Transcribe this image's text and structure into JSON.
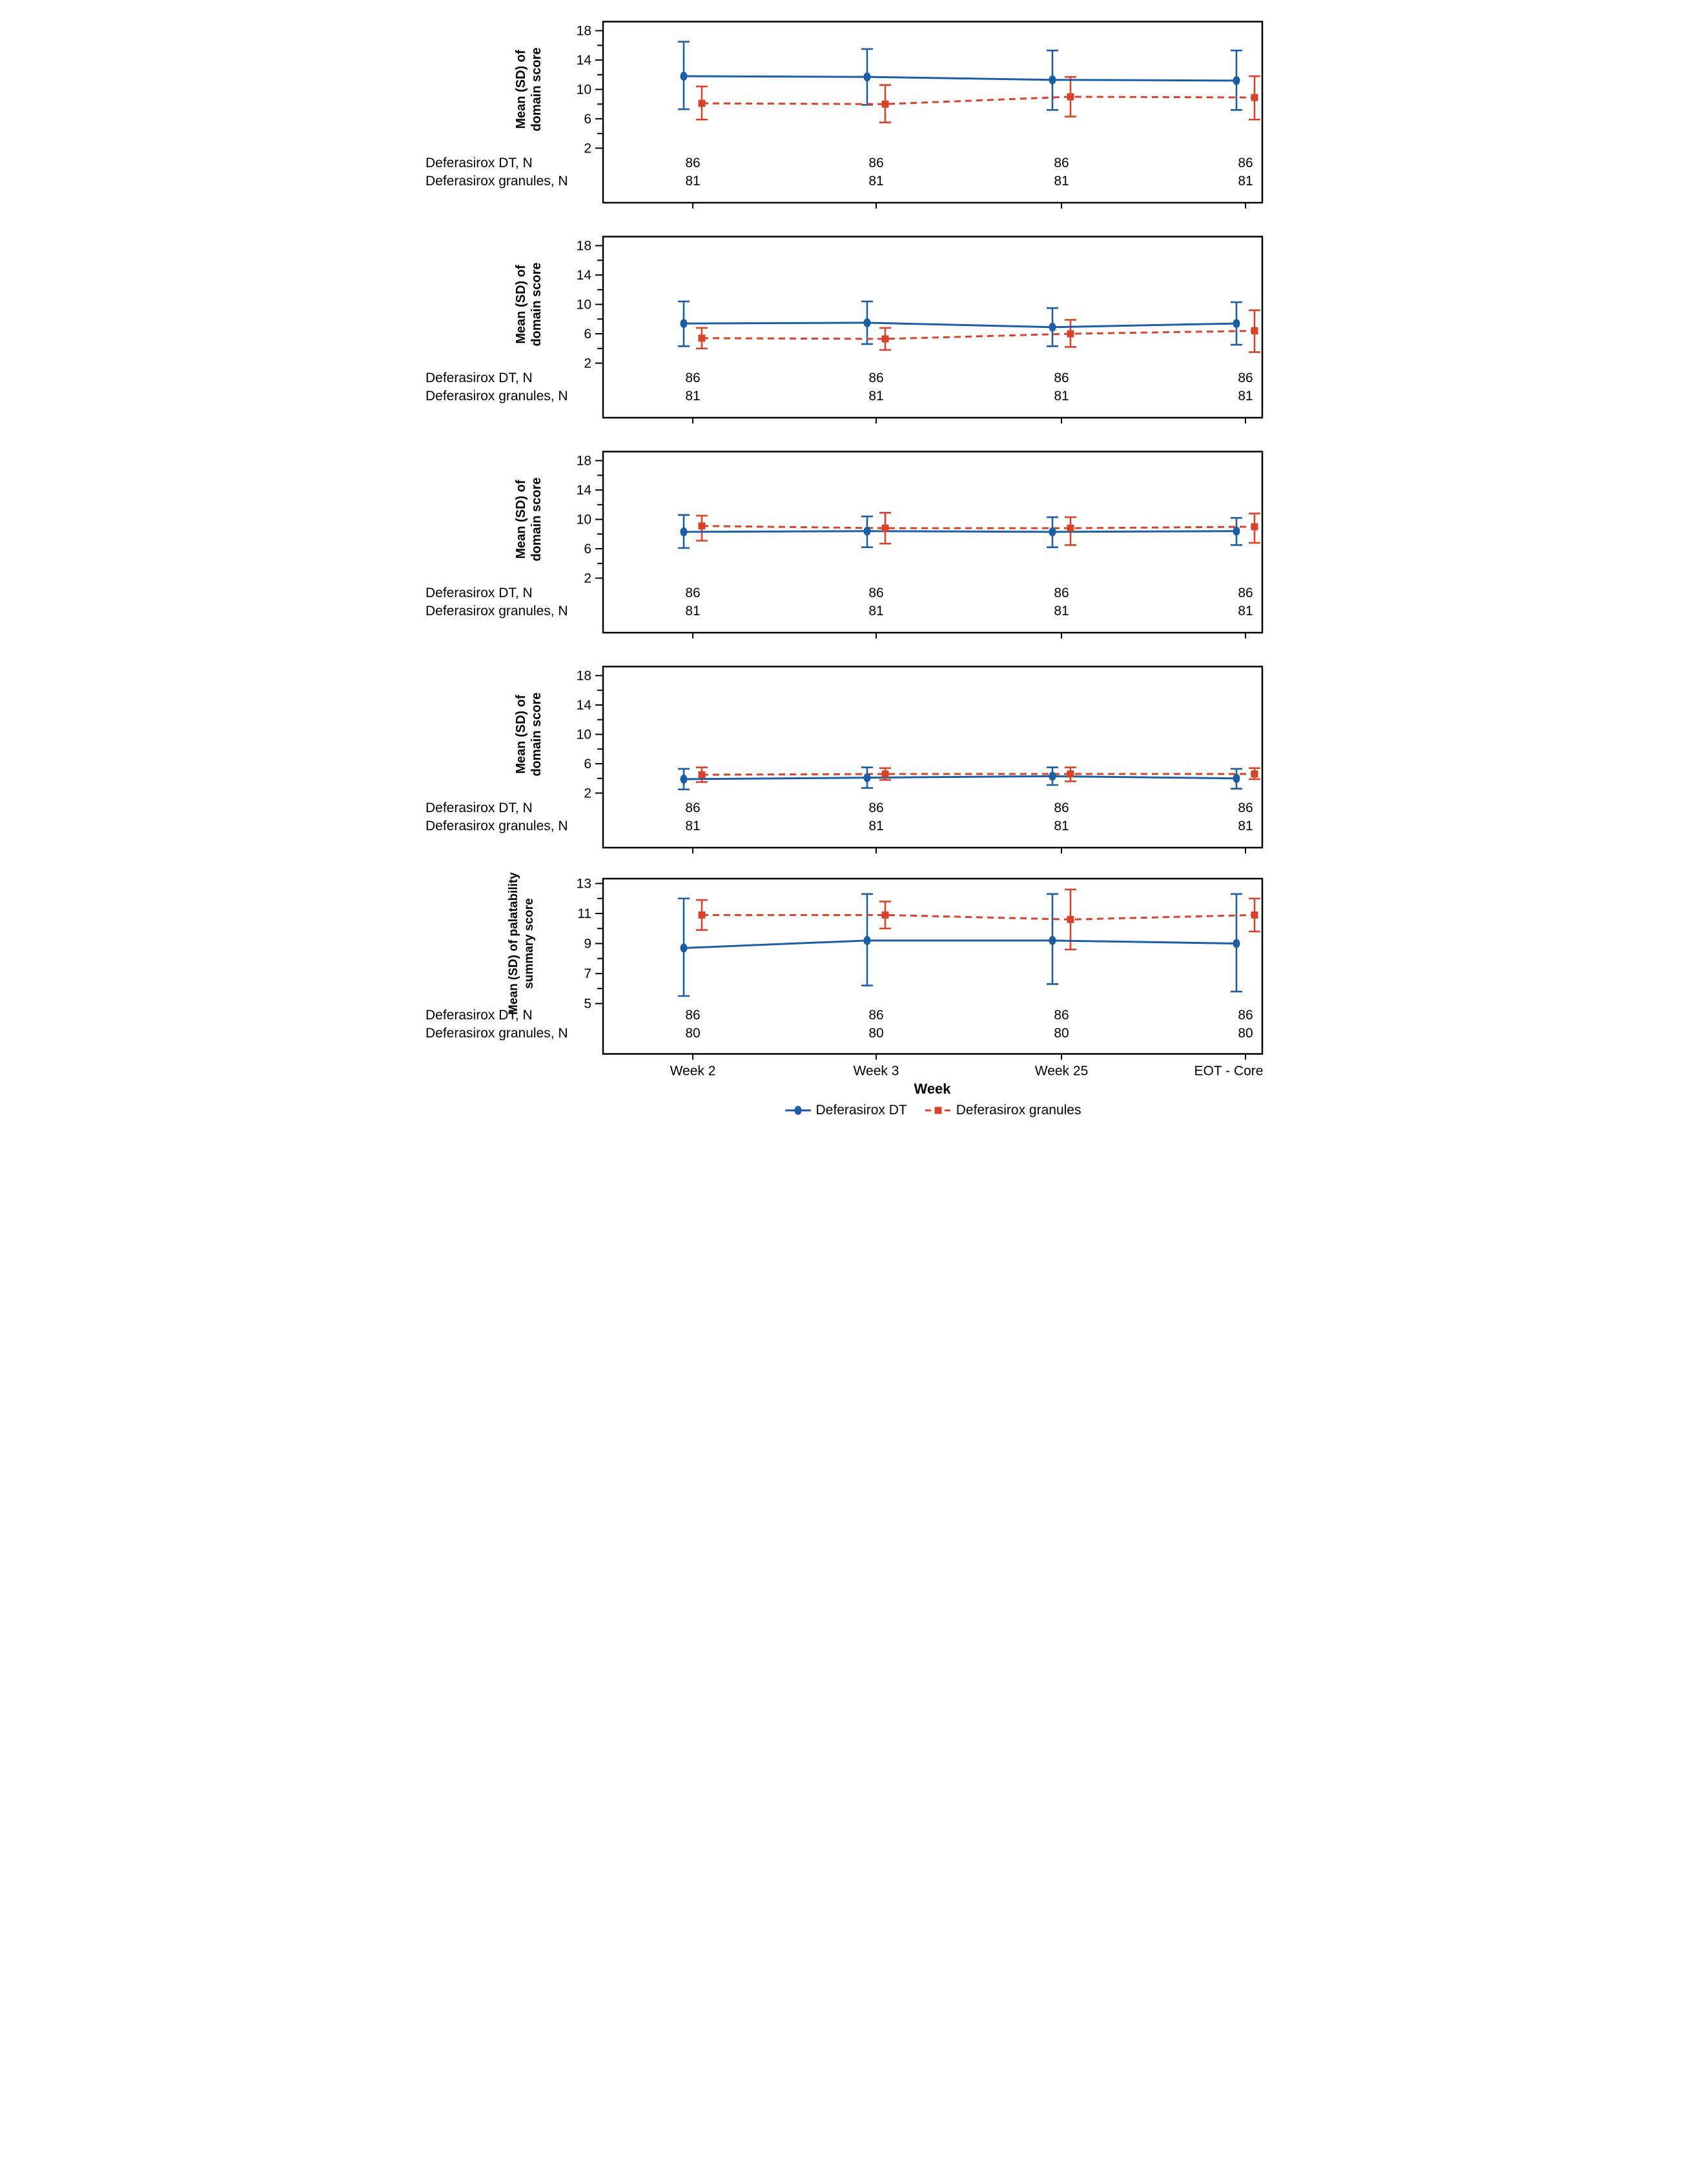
{
  "chart_data": {
    "type": "line",
    "description": "Five stacked panels of mean (SD) scores by visit for two treatment arms",
    "x_categories": [
      "Week 2",
      "Week 3",
      "Week 25",
      "EOT - Core"
    ],
    "xlabel": "Week",
    "grid": false,
    "legend_position": "bottom",
    "legend": [
      {
        "label": "Deferasirox DT",
        "color": "#1b5ea6",
        "marker": "circle",
        "line": "solid"
      },
      {
        "label": "Deferasirox granules",
        "color": "#d7432a",
        "marker": "square",
        "line": "dashed"
      }
    ],
    "row_labels": [
      "Deferasirox DT, N",
      "Deferasirox granules, N"
    ],
    "panels": [
      {
        "ylabel_lines": [
          "Mean (SD) of",
          "domain score"
        ],
        "yticks_major": [
          18,
          14,
          10,
          6,
          2
        ],
        "yticks_minor": [
          16,
          12,
          8,
          4
        ],
        "ylim": [
          2,
          18
        ],
        "series": [
          {
            "name": "Deferasirox DT",
            "mean": [
              11.8,
              11.7,
              11.3,
              11.2
            ],
            "lo": [
              7.3,
              7.9,
              7.2,
              7.2
            ],
            "hi": [
              16.5,
              15.5,
              15.3,
              15.3
            ]
          },
          {
            "name": "Deferasirox granules",
            "mean": [
              8.1,
              8.0,
              9.0,
              8.9
            ],
            "lo": [
              5.9,
              5.5,
              6.3,
              5.9
            ],
            "hi": [
              10.4,
              10.6,
              11.7,
              11.8
            ]
          }
        ],
        "n_rows": [
          [
            86,
            86,
            86,
            86
          ],
          [
            81,
            81,
            81,
            81
          ]
        ]
      },
      {
        "ylabel_lines": [
          "Mean (SD) of",
          "domain score"
        ],
        "yticks_major": [
          18,
          14,
          10,
          6,
          2
        ],
        "yticks_minor": [
          16,
          12,
          8,
          4
        ],
        "ylim": [
          2,
          18
        ],
        "series": [
          {
            "name": "Deferasirox DT",
            "mean": [
              7.4,
              7.5,
              6.9,
              7.4
            ],
            "lo": [
              4.3,
              4.6,
              4.3,
              4.5
            ],
            "hi": [
              10.4,
              10.4,
              9.5,
              10.3
            ]
          },
          {
            "name": "Deferasirox granules",
            "mean": [
              5.4,
              5.3,
              6.0,
              6.4
            ],
            "lo": [
              4.0,
              3.8,
              4.2,
              3.5
            ],
            "hi": [
              6.8,
              6.8,
              7.9,
              9.2
            ]
          }
        ],
        "n_rows": [
          [
            86,
            86,
            86,
            86
          ],
          [
            81,
            81,
            81,
            81
          ]
        ]
      },
      {
        "ylabel_lines": [
          "Mean (SD) of",
          "domain score"
        ],
        "yticks_major": [
          18,
          14,
          10,
          6,
          2
        ],
        "yticks_minor": [
          16,
          12,
          8,
          4
        ],
        "ylim": [
          2,
          18
        ],
        "series": [
          {
            "name": "Deferasirox DT",
            "mean": [
              8.3,
              8.4,
              8.3,
              8.4
            ],
            "lo": [
              6.1,
              6.2,
              6.2,
              6.5
            ],
            "hi": [
              10.6,
              10.4,
              10.3,
              10.2
            ]
          },
          {
            "name": "Deferasirox granules",
            "mean": [
              9.1,
              8.8,
              8.8,
              9.0
            ],
            "lo": [
              7.1,
              6.7,
              6.5,
              6.8
            ],
            "hi": [
              10.5,
              10.9,
              10.3,
              10.8
            ]
          }
        ],
        "n_rows": [
          [
            86,
            86,
            86,
            86
          ],
          [
            81,
            81,
            81,
            81
          ]
        ]
      },
      {
        "ylabel_lines": [
          "Mean (SD) of",
          "domain score"
        ],
        "yticks_major": [
          18,
          14,
          10,
          6,
          2
        ],
        "yticks_minor": [
          16,
          12,
          8,
          4
        ],
        "ylim": [
          2,
          18
        ],
        "series": [
          {
            "name": "Deferasirox DT",
            "mean": [
              3.9,
              4.1,
              4.3,
              4.0
            ],
            "lo": [
              2.5,
              2.7,
              3.1,
              2.6
            ],
            "hi": [
              5.3,
              5.5,
              5.5,
              5.3
            ]
          },
          {
            "name": "Deferasirox granules",
            "mean": [
              4.5,
              4.6,
              4.6,
              4.6
            ],
            "lo": [
              3.5,
              3.8,
              3.6,
              3.9
            ],
            "hi": [
              5.5,
              5.4,
              5.5,
              5.4
            ]
          }
        ],
        "n_rows": [
          [
            86,
            86,
            86,
            86
          ],
          [
            81,
            81,
            81,
            81
          ]
        ]
      },
      {
        "ylabel_lines": [
          "Mean (SD) of palatability",
          "summary score"
        ],
        "yticks_major": [
          13,
          11,
          9,
          7,
          5
        ],
        "yticks_minor": [
          12,
          10,
          8,
          6
        ],
        "ylim": [
          5,
          13
        ],
        "series": [
          {
            "name": "Deferasirox DT",
            "mean": [
              8.7,
              9.2,
              9.2,
              9.0
            ],
            "lo": [
              5.5,
              6.2,
              6.3,
              5.8
            ],
            "hi": [
              12.0,
              12.3,
              12.3,
              12.3
            ]
          },
          {
            "name": "Deferasirox granules",
            "mean": [
              10.9,
              10.9,
              10.6,
              10.9
            ],
            "lo": [
              9.9,
              10.0,
              8.6,
              9.8
            ],
            "hi": [
              11.9,
              11.8,
              12.6,
              12.0
            ]
          }
        ],
        "n_rows": [
          [
            86,
            86,
            86,
            86
          ],
          [
            80,
            80,
            80,
            80
          ]
        ]
      }
    ]
  }
}
